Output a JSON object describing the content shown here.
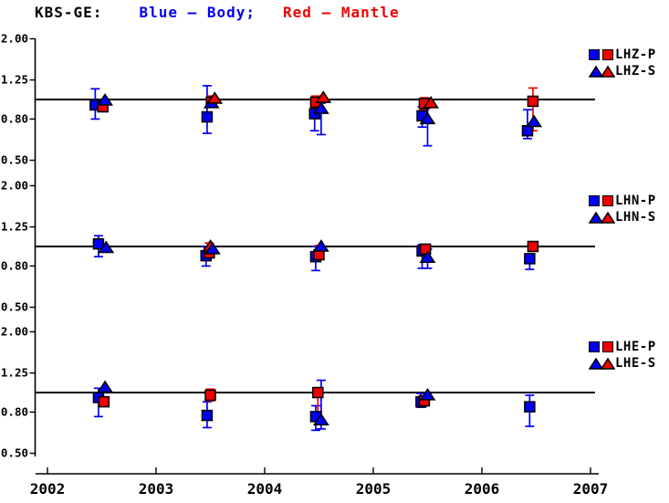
{
  "title": {
    "station": "KBS-GE:",
    "body": "Blue – Body;",
    "mantle": "Red – Mantle"
  },
  "colors": {
    "body": "#0000f0",
    "mantle": "#f00000",
    "axis": "#000000",
    "background": "#ffffff"
  },
  "chart_data": {
    "type": "scatter",
    "title": "KBS-GE: Blue – Body; Red – Mantle",
    "x_axis": {
      "ticks": [
        2002,
        2003,
        2004,
        2005,
        2006,
        2007
      ],
      "labels": [
        "2002",
        "2003",
        "2004",
        "2005",
        "2006",
        "2007"
      ],
      "range": [
        2002,
        2007
      ]
    },
    "y_axis": {
      "scale": "log",
      "ticks": [
        2.0,
        1.25,
        0.8,
        0.5
      ],
      "labels": [
        "2.00",
        "1.25",
        "0.80",
        "0.50"
      ],
      "range": [
        0.45,
        2.2
      ],
      "reference_line": 1.0
    },
    "legend_note": "squares = P measurements, triangles = S measurements; blue = Body wave, red = Mantle wave",
    "panels": [
      {
        "id": "LHZ",
        "legend_p": "LHZ-P",
        "legend_s": "LHZ-S",
        "markers": [
          {
            "series": "body-p",
            "x": 2002.44,
            "v": 0.94,
            "lo": 0.8,
            "hi": 1.13
          },
          {
            "series": "mantle-p",
            "x": 2002.51,
            "v": 0.92
          },
          {
            "series": "body-s",
            "x": 2002.53,
            "v": 0.99
          },
          {
            "series": "body-p",
            "x": 2003.47,
            "v": 0.82,
            "lo": 0.68,
            "hi": 1.17
          },
          {
            "series": "mantle-p",
            "x": 2003.51,
            "v": 0.97,
            "lo": 0.92,
            "hi": 1.04
          },
          {
            "series": "body-s",
            "x": 2003.51,
            "v": 0.96
          },
          {
            "series": "mantle-s",
            "x": 2003.54,
            "v": 1.01
          },
          {
            "series": "body-p",
            "x": 2004.46,
            "v": 0.85,
            "lo": 0.7,
            "hi": 0.95
          },
          {
            "series": "mantle-p",
            "x": 2004.47,
            "v": 0.97,
            "lo": 0.9,
            "hi": 1.04
          },
          {
            "series": "body-s",
            "x": 2004.52,
            "v": 0.9,
            "lo": 0.67,
            "hi": 0.96
          },
          {
            "series": "mantle-s",
            "x": 2004.54,
            "v": 1.02
          },
          {
            "series": "body-p",
            "x": 2005.45,
            "v": 0.83,
            "lo": 0.73,
            "hi": 0.92
          },
          {
            "series": "mantle-p",
            "x": 2005.47,
            "v": 0.955,
            "lo": 0.89,
            "hi": 1.02
          },
          {
            "series": "body-s",
            "x": 2005.5,
            "v": 0.8,
            "lo": 0.59,
            "hi": 0.92
          },
          {
            "series": "mantle-s",
            "x": 2005.53,
            "v": 0.96
          },
          {
            "series": "body-p",
            "x": 2006.42,
            "v": 0.7,
            "lo": 0.64,
            "hi": 0.89
          },
          {
            "series": "mantle-p",
            "x": 2006.47,
            "v": 0.98,
            "lo": 0.7,
            "hi": 1.14
          },
          {
            "series": "body-s",
            "x": 2006.48,
            "v": 0.775
          }
        ]
      },
      {
        "id": "LHN",
        "legend_p": "LHN-P",
        "legend_s": "LHN-S",
        "markers": [
          {
            "series": "body-p",
            "x": 2002.47,
            "v": 1.03,
            "lo": 0.89,
            "hi": 1.13
          },
          {
            "series": "body-s",
            "x": 2002.54,
            "v": 0.985
          },
          {
            "series": "body-p",
            "x": 2003.46,
            "v": 0.9,
            "lo": 0.8,
            "hi": 1.0
          },
          {
            "series": "mantle-p",
            "x": 2003.49,
            "v": 0.93,
            "lo": 0.88,
            "hi": 1.04
          },
          {
            "series": "mantle-s",
            "x": 2003.5,
            "v": 1.0
          },
          {
            "series": "body-s",
            "x": 2003.52,
            "v": 0.97
          },
          {
            "series": "body-p",
            "x": 2004.47,
            "v": 0.89,
            "lo": 0.76,
            "hi": 1.0
          },
          {
            "series": "mantle-p",
            "x": 2004.5,
            "v": 0.91,
            "lo": 0.88,
            "hi": 1.01
          },
          {
            "series": "body-s",
            "x": 2004.52,
            "v": 1.0
          },
          {
            "series": "body-p",
            "x": 2005.45,
            "v": 0.95,
            "lo": 0.78,
            "hi": 1.02
          },
          {
            "series": "mantle-p",
            "x": 2005.48,
            "v": 0.97
          },
          {
            "series": "body-s",
            "x": 2005.5,
            "v": 0.88,
            "lo": 0.78,
            "hi": 0.97
          },
          {
            "series": "body-p",
            "x": 2006.44,
            "v": 0.87,
            "lo": 0.77,
            "hi": 0.91
          },
          {
            "series": "mantle-p",
            "x": 2006.47,
            "v": 1.0
          }
        ]
      },
      {
        "id": "LHE",
        "legend_p": "LHE-P",
        "legend_s": "LHE-S",
        "markers": [
          {
            "series": "body-p",
            "x": 2002.47,
            "v": 0.945,
            "lo": 0.76,
            "hi": 1.05
          },
          {
            "series": "mantle-p",
            "x": 2002.52,
            "v": 0.9
          },
          {
            "series": "body-s",
            "x": 2002.53,
            "v": 1.06
          },
          {
            "series": "body-p",
            "x": 2003.47,
            "v": 0.77,
            "lo": 0.67,
            "hi": 0.9
          },
          {
            "series": "mantle-p",
            "x": 2003.5,
            "v": 0.97,
            "lo": 0.91,
            "hi": 1.04
          },
          {
            "series": "body-p",
            "x": 2004.47,
            "v": 0.76,
            "lo": 0.65,
            "hi": 0.86
          },
          {
            "series": "mantle-p",
            "x": 2004.49,
            "v": 1.0,
            "lo": 0.8,
            "hi": 1.04
          },
          {
            "series": "body-s",
            "x": 2004.52,
            "v": 0.73,
            "lo": 0.66,
            "hi": 1.15
          },
          {
            "series": "body-p",
            "x": 2005.44,
            "v": 0.9,
            "lo": 0.845,
            "hi": 0.99
          },
          {
            "series": "mantle-p",
            "x": 2005.47,
            "v": 0.91
          },
          {
            "series": "body-s",
            "x": 2005.5,
            "v": 0.97
          },
          {
            "series": "body-p",
            "x": 2006.44,
            "v": 0.85,
            "lo": 0.68,
            "hi": 0.97
          }
        ]
      }
    ]
  }
}
